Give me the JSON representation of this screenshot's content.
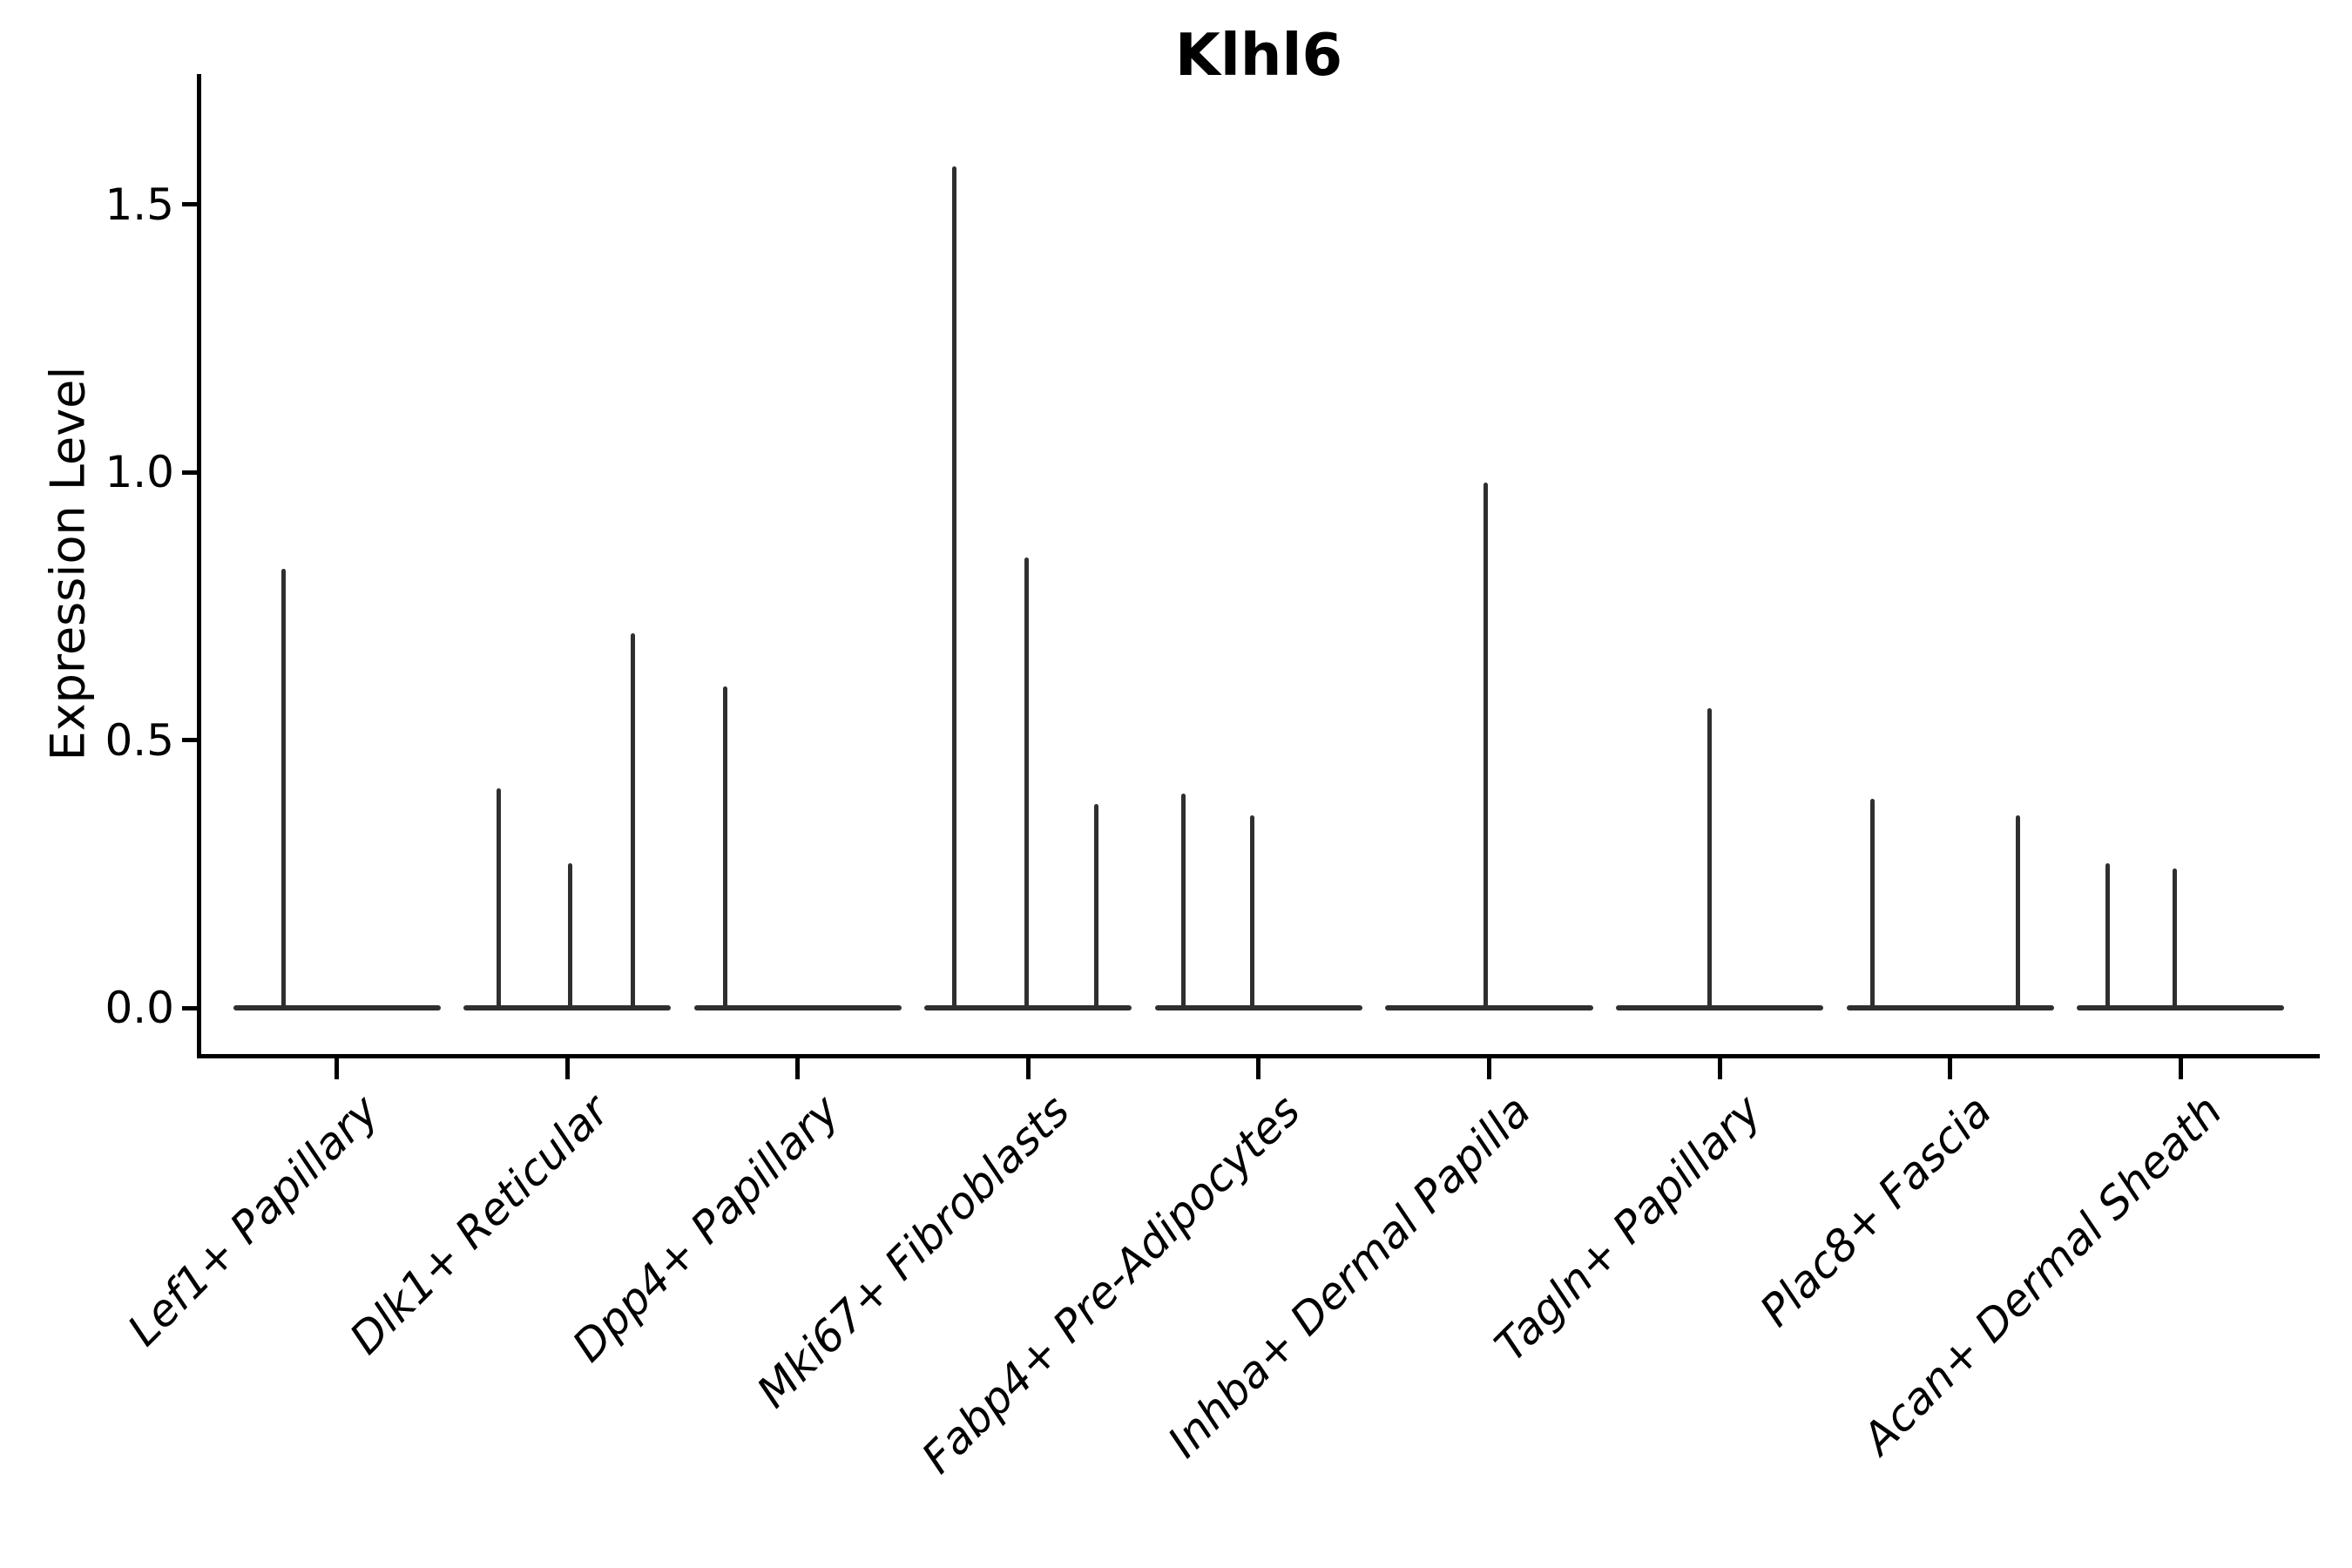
{
  "title": "Klhl6",
  "chart_data": {
    "type": "violin",
    "title": "Klhl6",
    "xlabel": "",
    "ylabel": "Expression Level",
    "yticks": [
      "0.0",
      "0.5",
      "1.0",
      "1.5"
    ],
    "ylim": [
      -0.09,
      1.74
    ],
    "grid": false,
    "legend": "none",
    "stroke_color": "#2f2f2f",
    "axis_color": "#000000",
    "categories": [
      "Lef1+ Papillary",
      "Dlk1+ Reticular",
      "Dpp4+ Papillary",
      "Mki67+ Fibroblasts",
      "Fabp4+ Pre-Adipocytes",
      "Inhba+ Dermal Papilla",
      "Tagln+ Papillary",
      "Plac8+ Fascia",
      "Acan+ Dermal Sheath"
    ],
    "group_width": 0.9,
    "baseline_value": 0.0,
    "groups": [
      {
        "category": "Lef1+ Papillary",
        "violins": [
          {
            "offset": -0.232,
            "peak": 0.82
          }
        ]
      },
      {
        "category": "Dlk1+ Reticular",
        "violins": [
          {
            "offset": -0.296,
            "peak": 0.41
          },
          {
            "offset": 0.012,
            "peak": 0.27
          },
          {
            "offset": 0.285,
            "peak": 0.7
          }
        ]
      },
      {
        "category": "Dpp4+ Papillary",
        "violins": [
          {
            "offset": -0.316,
            "peak": 0.6
          }
        ]
      },
      {
        "category": "Mki67+ Fibroblasts",
        "violins": [
          {
            "offset": -0.322,
            "peak": 1.57
          },
          {
            "offset": -0.006,
            "peak": 0.84
          },
          {
            "offset": 0.297,
            "peak": 0.38
          }
        ]
      },
      {
        "category": "Fabp4+ Pre-Adipocytes",
        "violins": [
          {
            "offset": -0.328,
            "peak": 0.4
          },
          {
            "offset": -0.029,
            "peak": 0.36
          }
        ]
      },
      {
        "category": "Inhba+ Dermal Papilla",
        "violins": [
          {
            "offset": -0.016,
            "peak": 0.98
          }
        ]
      },
      {
        "category": "Tagln+ Papillary",
        "violins": [
          {
            "offset": -0.043,
            "peak": 0.56
          }
        ]
      },
      {
        "category": "Plac8+ Fascia",
        "violins": [
          {
            "offset": -0.336,
            "peak": 0.39
          },
          {
            "offset": 0.295,
            "peak": 0.36
          }
        ]
      },
      {
        "category": "Acan+ Dermal Sheath",
        "violins": [
          {
            "offset": -0.316,
            "peak": 0.27
          },
          {
            "offset": -0.025,
            "peak": 0.26
          }
        ]
      }
    ]
  }
}
